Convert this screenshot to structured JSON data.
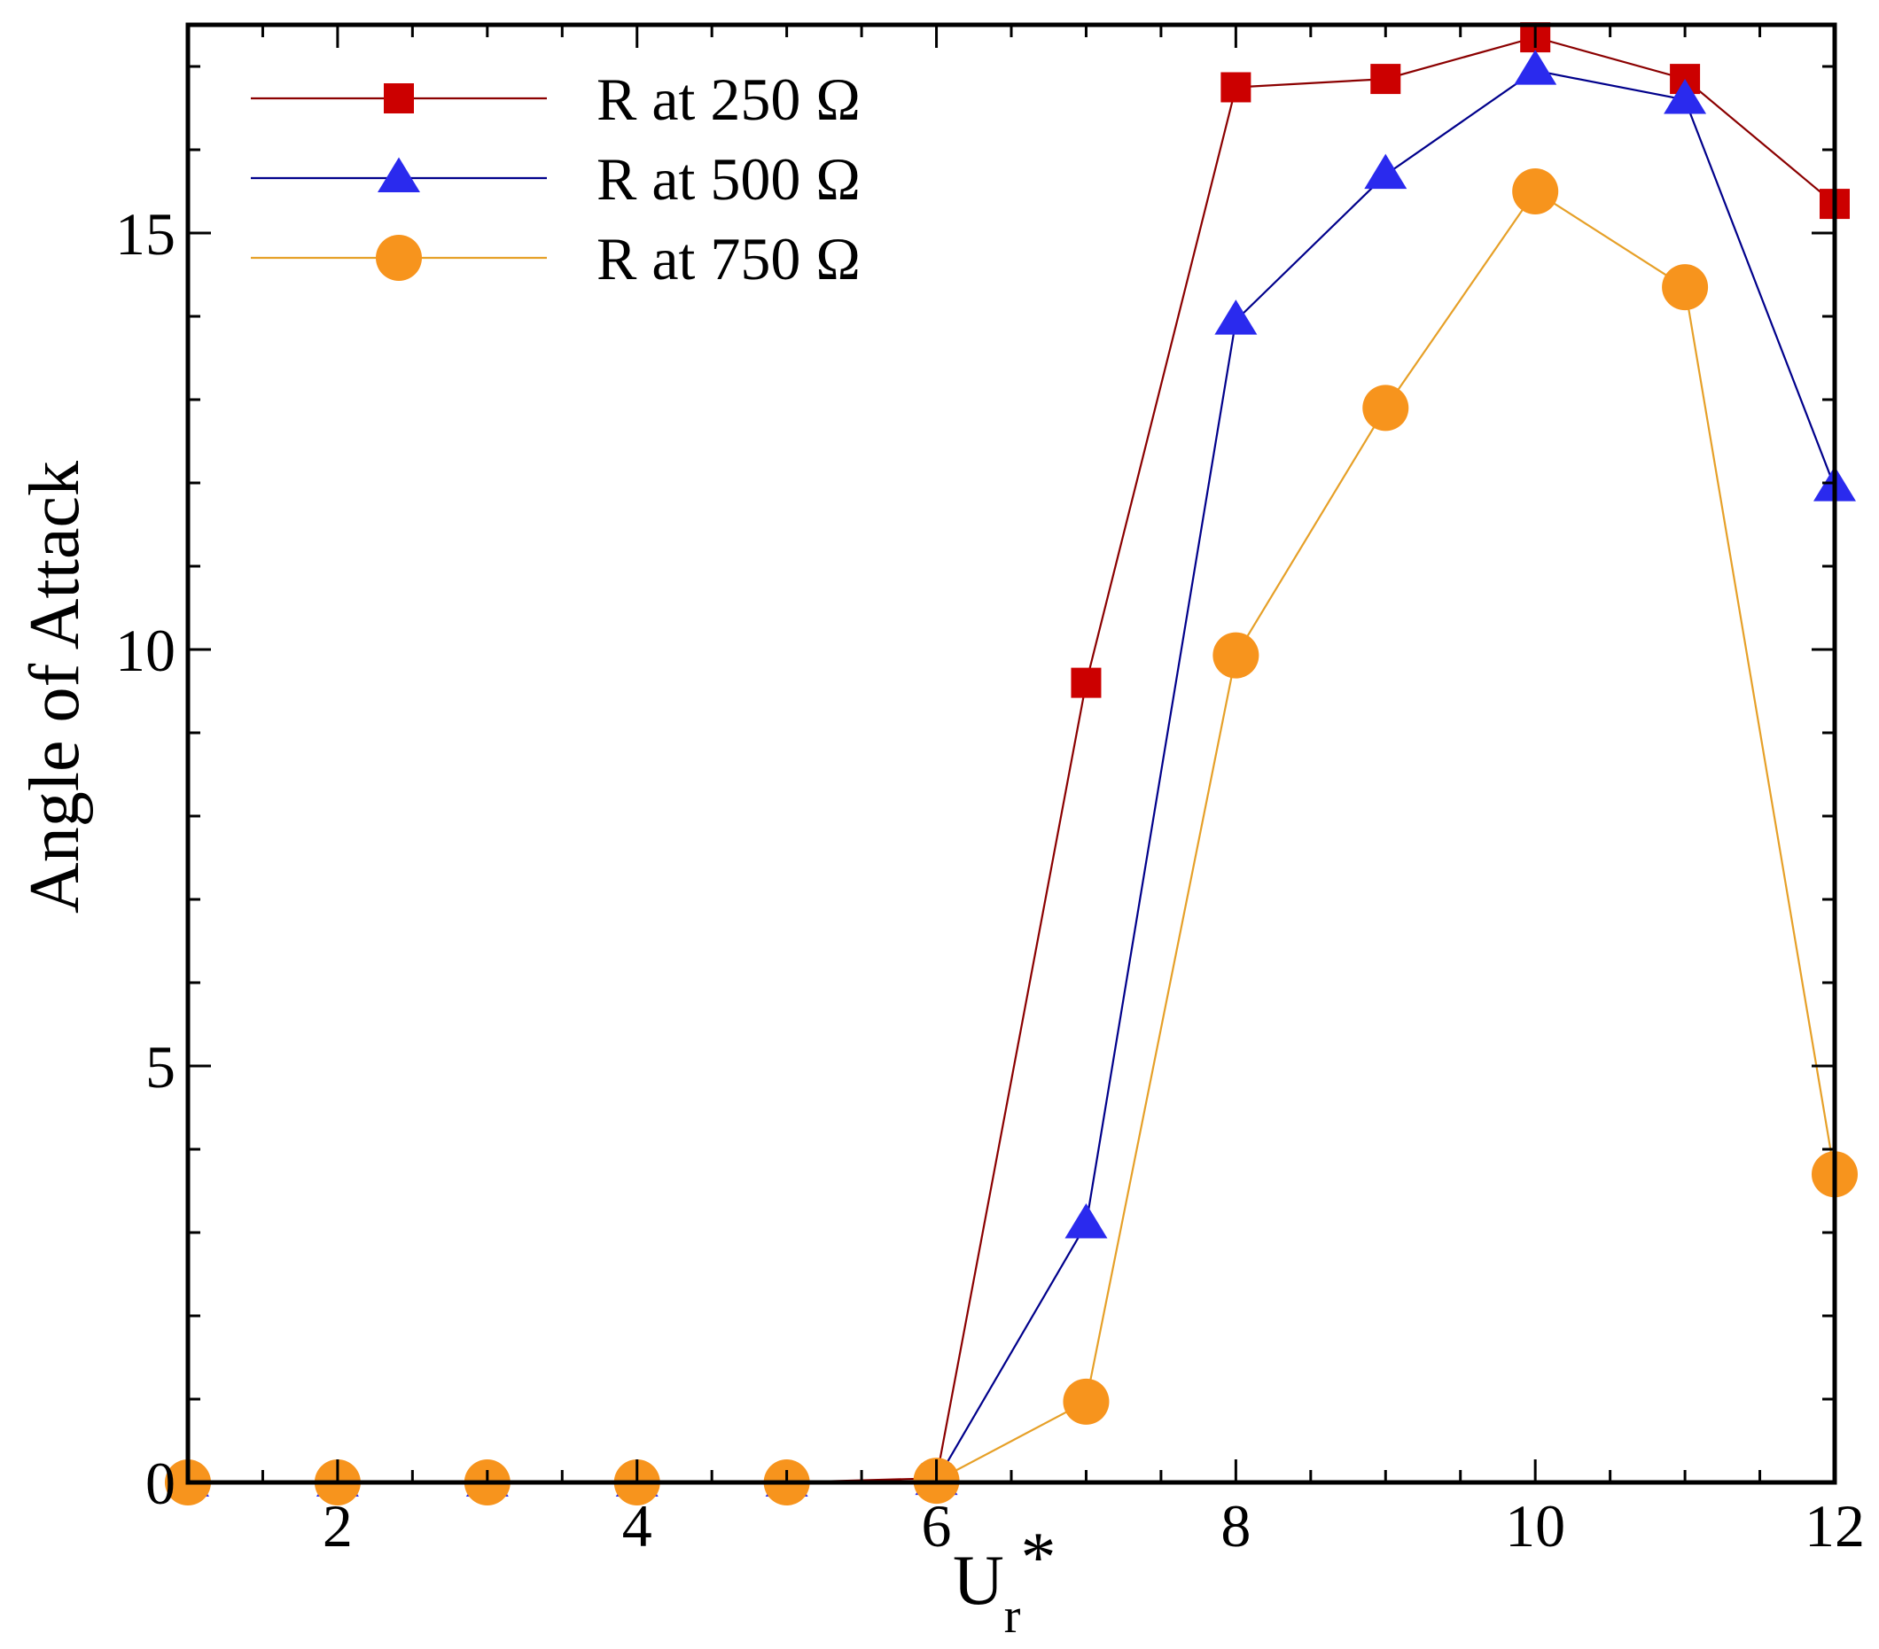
{
  "chart_data": {
    "type": "line",
    "title": "",
    "xlabel": "U",
    "xlabel_subscript": "r",
    "xlabel_suffix": "*",
    "ylabel": "Angle of Attack",
    "xlim": [
      1,
      12
    ],
    "ylim": [
      0,
      17.5
    ],
    "x_ticks": [
      2,
      4,
      6,
      8,
      10,
      12
    ],
    "x_tick_labels": [
      "2",
      "4",
      "6",
      "8",
      "10",
      "12"
    ],
    "x_minor_step": 0.5,
    "y_ticks": [
      0,
      5,
      10,
      15
    ],
    "y_tick_labels": [
      "0",
      "5",
      "10",
      "15"
    ],
    "y_minor_step": 1,
    "grid": false,
    "legend_position": "top-left",
    "series": [
      {
        "name": "R at 250 Ω",
        "color": "#8b0000",
        "marker_color": "#cc0000",
        "marker": "square",
        "x": [
          1,
          2,
          3,
          4,
          5,
          6,
          7,
          8,
          9,
          10,
          11,
          12
        ],
        "y": [
          0,
          0,
          0,
          0,
          0,
          0.05,
          9.6,
          16.75,
          16.85,
          17.35,
          16.85,
          15.35
        ]
      },
      {
        "name": "R at 500 Ω",
        "color": "#00008b",
        "marker_color": "#2a2aee",
        "marker": "triangle",
        "x": [
          1,
          2,
          3,
          4,
          5,
          6,
          7,
          8,
          9,
          10,
          11,
          12
        ],
        "y": [
          0,
          0,
          0,
          0,
          0,
          0.02,
          3.1,
          13.95,
          15.7,
          16.95,
          16.6,
          11.95
        ]
      },
      {
        "name": "R at 750 Ω",
        "color": "#e6a028",
        "marker_color": "#f7941d",
        "marker": "circle",
        "x": [
          1,
          2,
          3,
          4,
          5,
          6,
          7,
          8,
          9,
          10,
          11,
          12
        ],
        "y": [
          0,
          0,
          0,
          0,
          0,
          0.02,
          0.97,
          9.93,
          12.9,
          15.5,
          14.35,
          3.7
        ]
      }
    ]
  }
}
